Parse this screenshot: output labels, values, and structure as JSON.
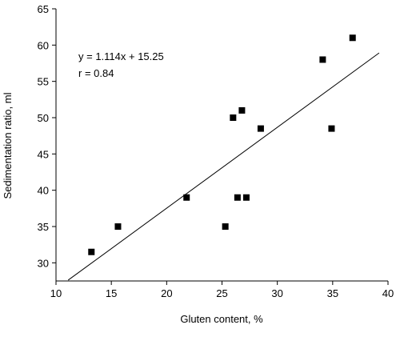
{
  "chart_data": {
    "type": "scatter",
    "title": "",
    "xlabel": "Gluten content, %",
    "ylabel": "Sedimentation ratio, ml",
    "xlim": [
      10,
      40
    ],
    "ylim": [
      27.5,
      65
    ],
    "x_ticks": [
      10,
      15,
      20,
      25,
      30,
      35,
      40
    ],
    "y_ticks": [
      30,
      35,
      40,
      45,
      50,
      55,
      60,
      65
    ],
    "grid": false,
    "legend": "none",
    "marker_color": "#000000",
    "series": [
      {
        "points": [
          {
            "x": 13.2,
            "y": 31.5
          },
          {
            "x": 15.6,
            "y": 35.0
          },
          {
            "x": 21.8,
            "y": 39.0
          },
          {
            "x": 25.3,
            "y": 35.0
          },
          {
            "x": 26.0,
            "y": 50.0
          },
          {
            "x": 26.4,
            "y": 39.0
          },
          {
            "x": 26.8,
            "y": 51.0
          },
          {
            "x": 27.2,
            "y": 39.0
          },
          {
            "x": 28.5,
            "y": 48.5
          },
          {
            "x": 34.1,
            "y": 58.0
          },
          {
            "x": 34.9,
            "y": 48.5
          },
          {
            "x": 36.8,
            "y": 61.0
          }
        ]
      }
    ],
    "regression": {
      "slope": 1.114,
      "intercept": 15.25,
      "x_range": [
        11.1,
        39.2
      ]
    },
    "annotations": {
      "equation": "y = 1.114x + 15.25",
      "r": "r = 0.84"
    }
  }
}
